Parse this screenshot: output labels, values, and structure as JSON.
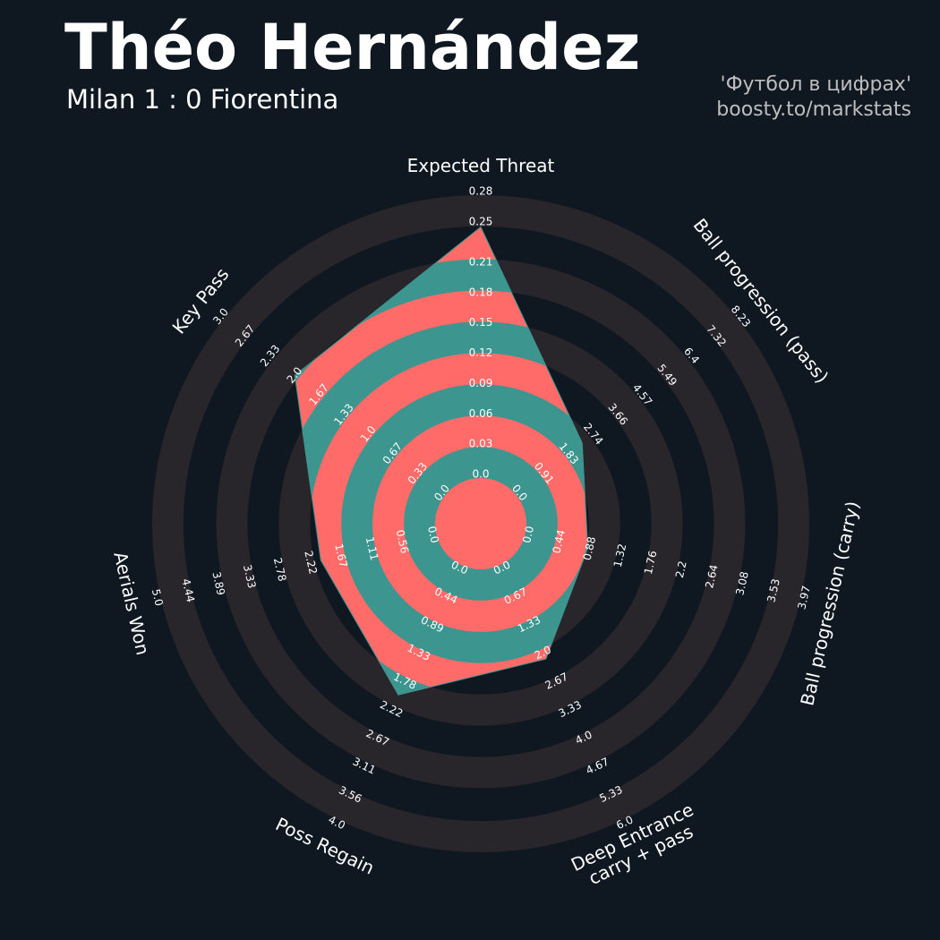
{
  "title": "Théo Hernández",
  "subtitle": "Milan 1 : 0 Fiorentina",
  "credits": [
    "'Футбол в цифрах'",
    "boosty.to/markstats"
  ],
  "chart_data": {
    "type": "radar",
    "categories": [
      "Expected Threat",
      "Ball progression (pass)",
      "Ball progression (carry)",
      "Deep Entrance\ncarry + pass",
      "Poss Regain",
      "Aerials Won",
      "Key Pass"
    ],
    "values": [
      0.245,
      2.34,
      0.85,
      2.14,
      1.99,
      2.03,
      2.0
    ],
    "colors": [
      "#ff6b68",
      "#3d958f"
    ],
    "ring_color": "#28252b",
    "axes": [
      {
        "lim": [
          0,
          0.28
        ],
        "ticks": [
          {
            "value": 0,
            "label": "0.0"
          },
          0.03,
          0.06,
          0.09,
          0.12,
          0.15,
          0.18,
          0.21,
          0.25,
          0.28
        ]
      },
      {
        "lim": [
          0,
          8.23
        ],
        "ticks": [
          {
            "value": 0,
            "label": "0.0"
          },
          0.91,
          1.83,
          2.74,
          3.66,
          4.57,
          5.49,
          6.4,
          7.32,
          8.23
        ]
      },
      {
        "lim": [
          0,
          3.97
        ],
        "ticks": [
          {
            "value": 0,
            "label": "0.0"
          },
          0.44,
          0.88,
          1.32,
          1.76,
          2.2,
          2.64,
          3.08,
          3.53,
          3.97
        ]
      },
      {
        "lim": [
          0,
          6
        ],
        "ticks": [
          {
            "value": 0,
            "label": "0.0"
          },
          0.67,
          1.33,
          {
            "value": 2,
            "label": "2.0"
          },
          2.67,
          3.33,
          {
            "value": 4,
            "label": "4.0"
          },
          4.67,
          5.33,
          {
            "value": 6,
            "label": "6.0"
          }
        ]
      },
      {
        "lim": [
          0,
          4
        ],
        "ticks": [
          {
            "value": 0,
            "label": "0.0"
          },
          0.44,
          0.89,
          1.33,
          1.78,
          2.22,
          2.67,
          3.11,
          3.56,
          {
            "value": 4,
            "label": "4.0"
          }
        ]
      },
      {
        "lim": [
          0,
          5
        ],
        "ticks": [
          {
            "value": 0,
            "label": "0.0"
          },
          0.56,
          1.11,
          1.67,
          2.22,
          2.78,
          3.33,
          3.89,
          4.44,
          {
            "value": 5,
            "label": "5.0"
          }
        ]
      },
      {
        "lim": [
          0,
          3
        ],
        "ticks": [
          {
            "value": 0,
            "label": "0.0"
          },
          0.33,
          0.67,
          {
            "value": 1,
            "label": "1.0"
          },
          1.33,
          1.67,
          {
            "value": 2,
            "label": "2.0"
          },
          2.33,
          2.67,
          {
            "value": 3,
            "label": "3.0"
          }
        ]
      }
    ]
  }
}
